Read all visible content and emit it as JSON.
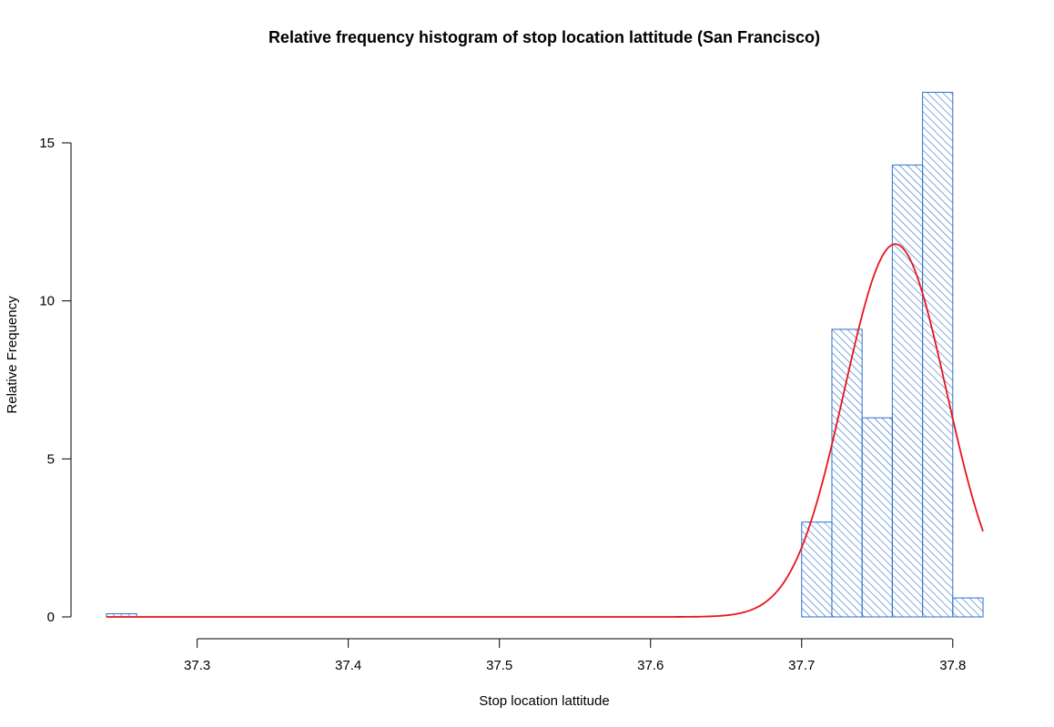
{
  "chart_data": {
    "type": "bar",
    "title": "Relative frequency histogram of stop location lattitude  (San Francisco)",
    "xlabel": "Stop location lattitude",
    "ylabel": "Relative Frequency",
    "xlim": [
      37.24,
      37.82
    ],
    "ylim": [
      0,
      16.6
    ],
    "x_ticks": [
      "37.3",
      "37.4",
      "37.5",
      "37.6",
      "37.7",
      "37.8"
    ],
    "y_ticks": [
      "0",
      "5",
      "10",
      "15"
    ],
    "grid": false,
    "bins": [
      {
        "x0": 37.24,
        "x1": 37.26,
        "value": 0.1
      },
      {
        "x0": 37.26,
        "x1": 37.28,
        "value": 0
      },
      {
        "x0": 37.28,
        "x1": 37.3,
        "value": 0
      },
      {
        "x0": 37.3,
        "x1": 37.32,
        "value": 0
      },
      {
        "x0": 37.32,
        "x1": 37.34,
        "value": 0
      },
      {
        "x0": 37.34,
        "x1": 37.36,
        "value": 0
      },
      {
        "x0": 37.36,
        "x1": 37.38,
        "value": 0
      },
      {
        "x0": 37.38,
        "x1": 37.4,
        "value": 0
      },
      {
        "x0": 37.4,
        "x1": 37.42,
        "value": 0
      },
      {
        "x0": 37.42,
        "x1": 37.44,
        "value": 0
      },
      {
        "x0": 37.44,
        "x1": 37.46,
        "value": 0
      },
      {
        "x0": 37.46,
        "x1": 37.48,
        "value": 0
      },
      {
        "x0": 37.48,
        "x1": 37.5,
        "value": 0
      },
      {
        "x0": 37.5,
        "x1": 37.52,
        "value": 0
      },
      {
        "x0": 37.52,
        "x1": 37.54,
        "value": 0
      },
      {
        "x0": 37.54,
        "x1": 37.56,
        "value": 0
      },
      {
        "x0": 37.56,
        "x1": 37.58,
        "value": 0
      },
      {
        "x0": 37.58,
        "x1": 37.6,
        "value": 0
      },
      {
        "x0": 37.6,
        "x1": 37.62,
        "value": 0
      },
      {
        "x0": 37.62,
        "x1": 37.64,
        "value": 0
      },
      {
        "x0": 37.64,
        "x1": 37.66,
        "value": 0
      },
      {
        "x0": 37.66,
        "x1": 37.68,
        "value": 0
      },
      {
        "x0": 37.68,
        "x1": 37.7,
        "value": 0
      },
      {
        "x0": 37.7,
        "x1": 37.72,
        "value": 3.0
      },
      {
        "x0": 37.72,
        "x1": 37.74,
        "value": 9.1
      },
      {
        "x0": 37.74,
        "x1": 37.76,
        "value": 6.3
      },
      {
        "x0": 37.76,
        "x1": 37.78,
        "value": 14.3
      },
      {
        "x0": 37.78,
        "x1": 37.8,
        "value": 16.6
      },
      {
        "x0": 37.8,
        "x1": 37.82,
        "value": 0.6
      }
    ],
    "curve": {
      "type": "normal-density",
      "mean": 37.762,
      "sd": 0.0338,
      "peak": 11.8,
      "range": [
        37.24,
        37.82
      ],
      "color": "#e8141d"
    },
    "colors": {
      "bar_stroke": "#2f6fc9",
      "hatch": "#2f6fc9",
      "curve": "#e8141d"
    }
  }
}
